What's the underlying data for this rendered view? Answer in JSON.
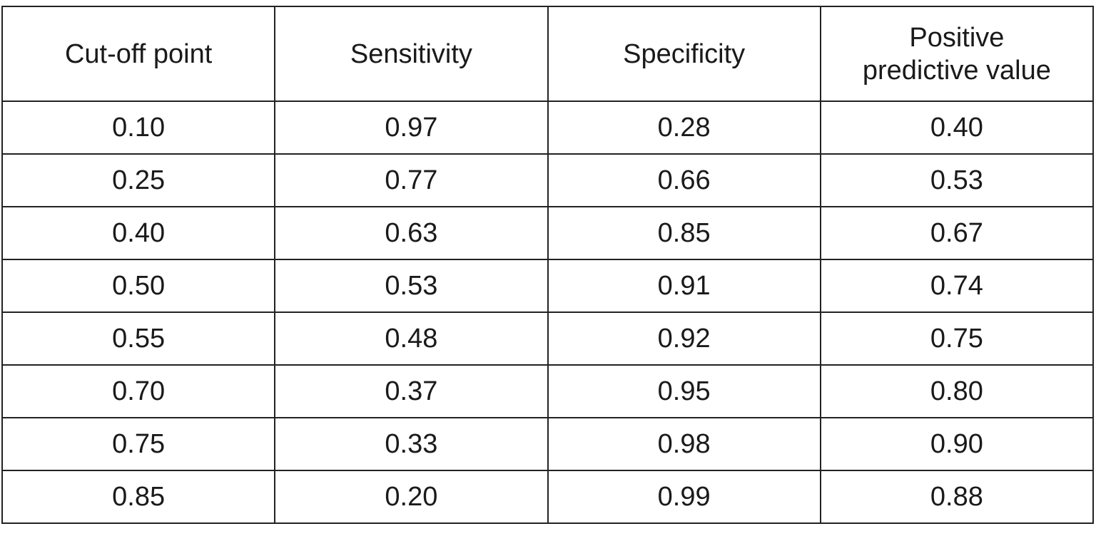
{
  "table": {
    "header": [
      "Cut-off point",
      "Sensitivity",
      "Specificity",
      "Positive predictive value"
    ],
    "rows": [
      [
        "0.10",
        "0.97",
        "0.28",
        "0.40"
      ],
      [
        "0.25",
        "0.77",
        "0.66",
        "0.53"
      ],
      [
        "0.40",
        "0.63",
        "0.85",
        "0.67"
      ],
      [
        "0.50",
        "0.53",
        "0.91",
        "0.74"
      ],
      [
        "0.55",
        "0.48",
        "0.92",
        "0.75"
      ],
      [
        "0.70",
        "0.37",
        "0.95",
        "0.80"
      ],
      [
        "0.75",
        "0.33",
        "0.98",
        "0.90"
      ],
      [
        "0.85",
        "0.20",
        "0.99",
        "0.88"
      ]
    ]
  }
}
